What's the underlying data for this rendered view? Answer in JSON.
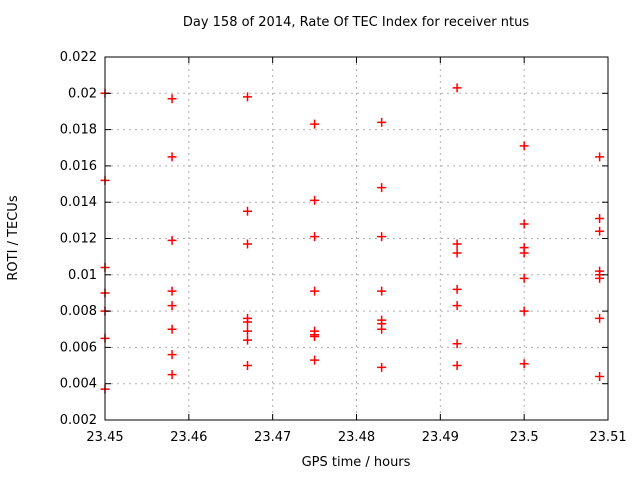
{
  "chart_data": {
    "type": "scatter",
    "title": "Day 158 of 2014, Rate Of TEC Index for receiver ntus",
    "xlabel": "GPS time / hours",
    "ylabel": "ROTI / TECUs",
    "xlim": [
      23.45,
      23.51
    ],
    "ylim": [
      0.002,
      0.022
    ],
    "x_ticks": [
      23.45,
      23.46,
      23.47,
      23.48,
      23.49,
      23.5,
      23.51
    ],
    "x_tick_labels": [
      "23.45",
      "23.46",
      "23.47",
      "23.48",
      "23.49",
      "23.5",
      "23.51"
    ],
    "y_ticks": [
      0.002,
      0.004,
      0.006,
      0.008,
      0.01,
      0.012,
      0.014,
      0.016,
      0.018,
      0.02,
      0.022
    ],
    "y_tick_labels": [
      "0.002",
      "0.004",
      "0.006",
      "0.008",
      "0.01",
      "0.012",
      "0.014",
      "0.016",
      "0.018",
      "0.02",
      "0.022"
    ],
    "grid": true,
    "legend": false,
    "marker": {
      "shape": "plus",
      "color": "#ff0000",
      "size": 4.5
    },
    "colors": {
      "background": "#ffffff",
      "border": "#000000",
      "gridline": "#b0b0b0",
      "marker": "#ff0000"
    },
    "series": [
      {
        "name": "ROTI",
        "points": [
          [
            23.45,
            0.02
          ],
          [
            23.45,
            0.0152
          ],
          [
            23.45,
            0.0104
          ],
          [
            23.45,
            0.009
          ],
          [
            23.45,
            0.008
          ],
          [
            23.45,
            0.0065
          ],
          [
            23.45,
            0.0037
          ],
          [
            23.458,
            0.0197
          ],
          [
            23.458,
            0.0165
          ],
          [
            23.458,
            0.0119
          ],
          [
            23.458,
            0.0091
          ],
          [
            23.458,
            0.0083
          ],
          [
            23.458,
            0.007
          ],
          [
            23.458,
            0.0056
          ],
          [
            23.458,
            0.0045
          ],
          [
            23.467,
            0.0198
          ],
          [
            23.467,
            0.0135
          ],
          [
            23.467,
            0.0117
          ],
          [
            23.467,
            0.0076
          ],
          [
            23.467,
            0.0074
          ],
          [
            23.467,
            0.0069
          ],
          [
            23.467,
            0.0064
          ],
          [
            23.467,
            0.005
          ],
          [
            23.475,
            0.0183
          ],
          [
            23.475,
            0.0141
          ],
          [
            23.475,
            0.0121
          ],
          [
            23.475,
            0.0091
          ],
          [
            23.475,
            0.0069
          ],
          [
            23.475,
            0.0067
          ],
          [
            23.475,
            0.0066
          ],
          [
            23.475,
            0.0053
          ],
          [
            23.483,
            0.0184
          ],
          [
            23.483,
            0.0148
          ],
          [
            23.483,
            0.0121
          ],
          [
            23.483,
            0.0091
          ],
          [
            23.483,
            0.0075
          ],
          [
            23.483,
            0.0073
          ],
          [
            23.483,
            0.007
          ],
          [
            23.483,
            0.0049
          ],
          [
            23.492,
            0.0203
          ],
          [
            23.492,
            0.0117
          ],
          [
            23.492,
            0.0112
          ],
          [
            23.492,
            0.0092
          ],
          [
            23.492,
            0.0083
          ],
          [
            23.492,
            0.0062
          ],
          [
            23.492,
            0.005
          ],
          [
            23.5,
            0.0171
          ],
          [
            23.5,
            0.0128
          ],
          [
            23.5,
            0.0115
          ],
          [
            23.5,
            0.0112
          ],
          [
            23.5,
            0.0098
          ],
          [
            23.5,
            0.008
          ],
          [
            23.5,
            0.0051
          ],
          [
            23.509,
            0.0165
          ],
          [
            23.509,
            0.0131
          ],
          [
            23.509,
            0.0124
          ],
          [
            23.509,
            0.0102
          ],
          [
            23.509,
            0.01
          ],
          [
            23.509,
            0.0098
          ],
          [
            23.509,
            0.0076
          ],
          [
            23.509,
            0.0044
          ]
        ]
      }
    ]
  }
}
